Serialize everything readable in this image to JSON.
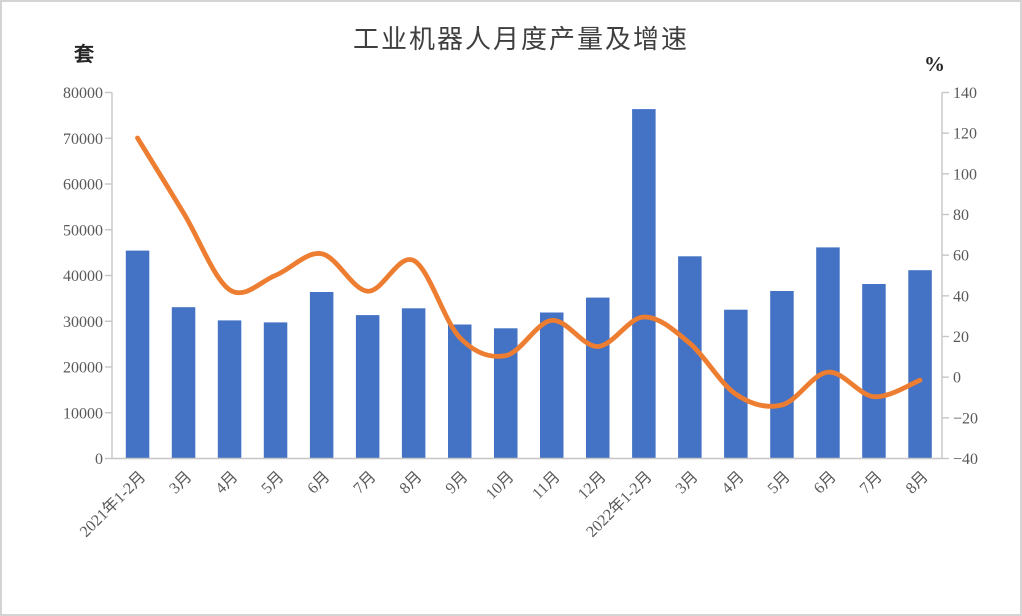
{
  "chart_data": {
    "type": "combo",
    "title": "工业机器人月度产量及增速",
    "grid": false,
    "legend": "none",
    "categories": [
      "2021年1-2月",
      "3月",
      "4月",
      "5月",
      "6月",
      "7月",
      "8月",
      "9月",
      "10月",
      "11月",
      "12月",
      "2022年1-2月",
      "3月",
      "4月",
      "5月",
      "6月",
      "7月",
      "8月"
    ],
    "series": [
      {
        "name": "月度产量",
        "type": "bar",
        "axis": "left",
        "color": "#4472C4",
        "values": [
          45442,
          33073,
          30178,
          29743,
          36383,
          31342,
          32828,
          29284,
          28460,
          31915,
          35175,
          76381,
          44205,
          32535,
          36616,
          46144,
          38142,
          41164
        ]
      },
      {
        "name": "增速",
        "type": "line",
        "axis": "right",
        "color": "#ED7D31",
        "smooth": true,
        "values": [
          117.6,
          80.8,
          43.0,
          50.1,
          60.7,
          42.3,
          57.4,
          19.5,
          10.6,
          27.9,
          15.1,
          29.6,
          16.6,
          -8.4,
          -13.7,
          2.5,
          -9.6,
          -1.5
        ]
      }
    ],
    "left_axis": {
      "label": "套",
      "min": 0,
      "max": 80000,
      "step": 10000,
      "tick_labels": [
        "80000",
        "70000",
        "60000",
        "50000",
        "40000",
        "30000",
        "20000",
        "10000",
        "0"
      ]
    },
    "right_axis": {
      "label": "%",
      "min": -40,
      "max": 140,
      "step": 20,
      "tick_labels": [
        "140",
        "120",
        "100",
        "80",
        "60",
        "40",
        "20",
        "0",
        "−20",
        "−40"
      ]
    },
    "x_axis": {
      "tick_label_rotation_deg": -45
    }
  },
  "colors": {
    "bar": "#4472C4",
    "line": "#ED7D31",
    "axis_line": "#c6c6c6",
    "tick_text": "#595959",
    "title_text": "#3f3f3f",
    "unit_text": "#262626",
    "frame_border": "#d4d4d4",
    "background": "#ffffff"
  }
}
